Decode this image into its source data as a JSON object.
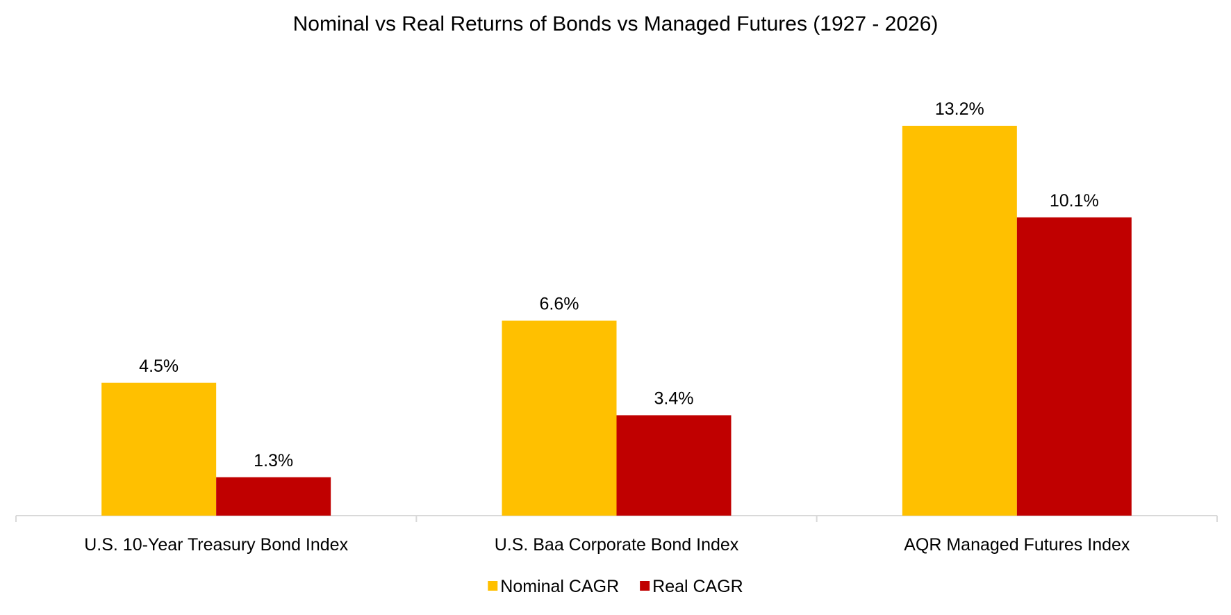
{
  "chart_data": {
    "type": "bar",
    "title": "Nominal vs Real Returns of Bonds vs Managed Futures (1927 - 2026)",
    "categories": [
      "U.S. 10-Year Treasury Bond Index",
      "U.S. Baa Corporate Bond Index",
      "AQR Managed Futures Index"
    ],
    "series": [
      {
        "name": "Nominal CAGR",
        "color": "#FFC000",
        "values": [
          4.5,
          6.6,
          13.2
        ],
        "labels": [
          "4.5%",
          "6.6%",
          "13.2%"
        ]
      },
      {
        "name": "Real CAGR",
        "color": "#C00000",
        "values": [
          1.3,
          3.4,
          10.1
        ],
        "labels": [
          "1.3%",
          "3.4%",
          "10.1%"
        ]
      }
    ],
    "ylim": [
      0,
      14
    ],
    "grid": false,
    "legend_position": "bottom-center",
    "xlabel": "",
    "ylabel": ""
  }
}
